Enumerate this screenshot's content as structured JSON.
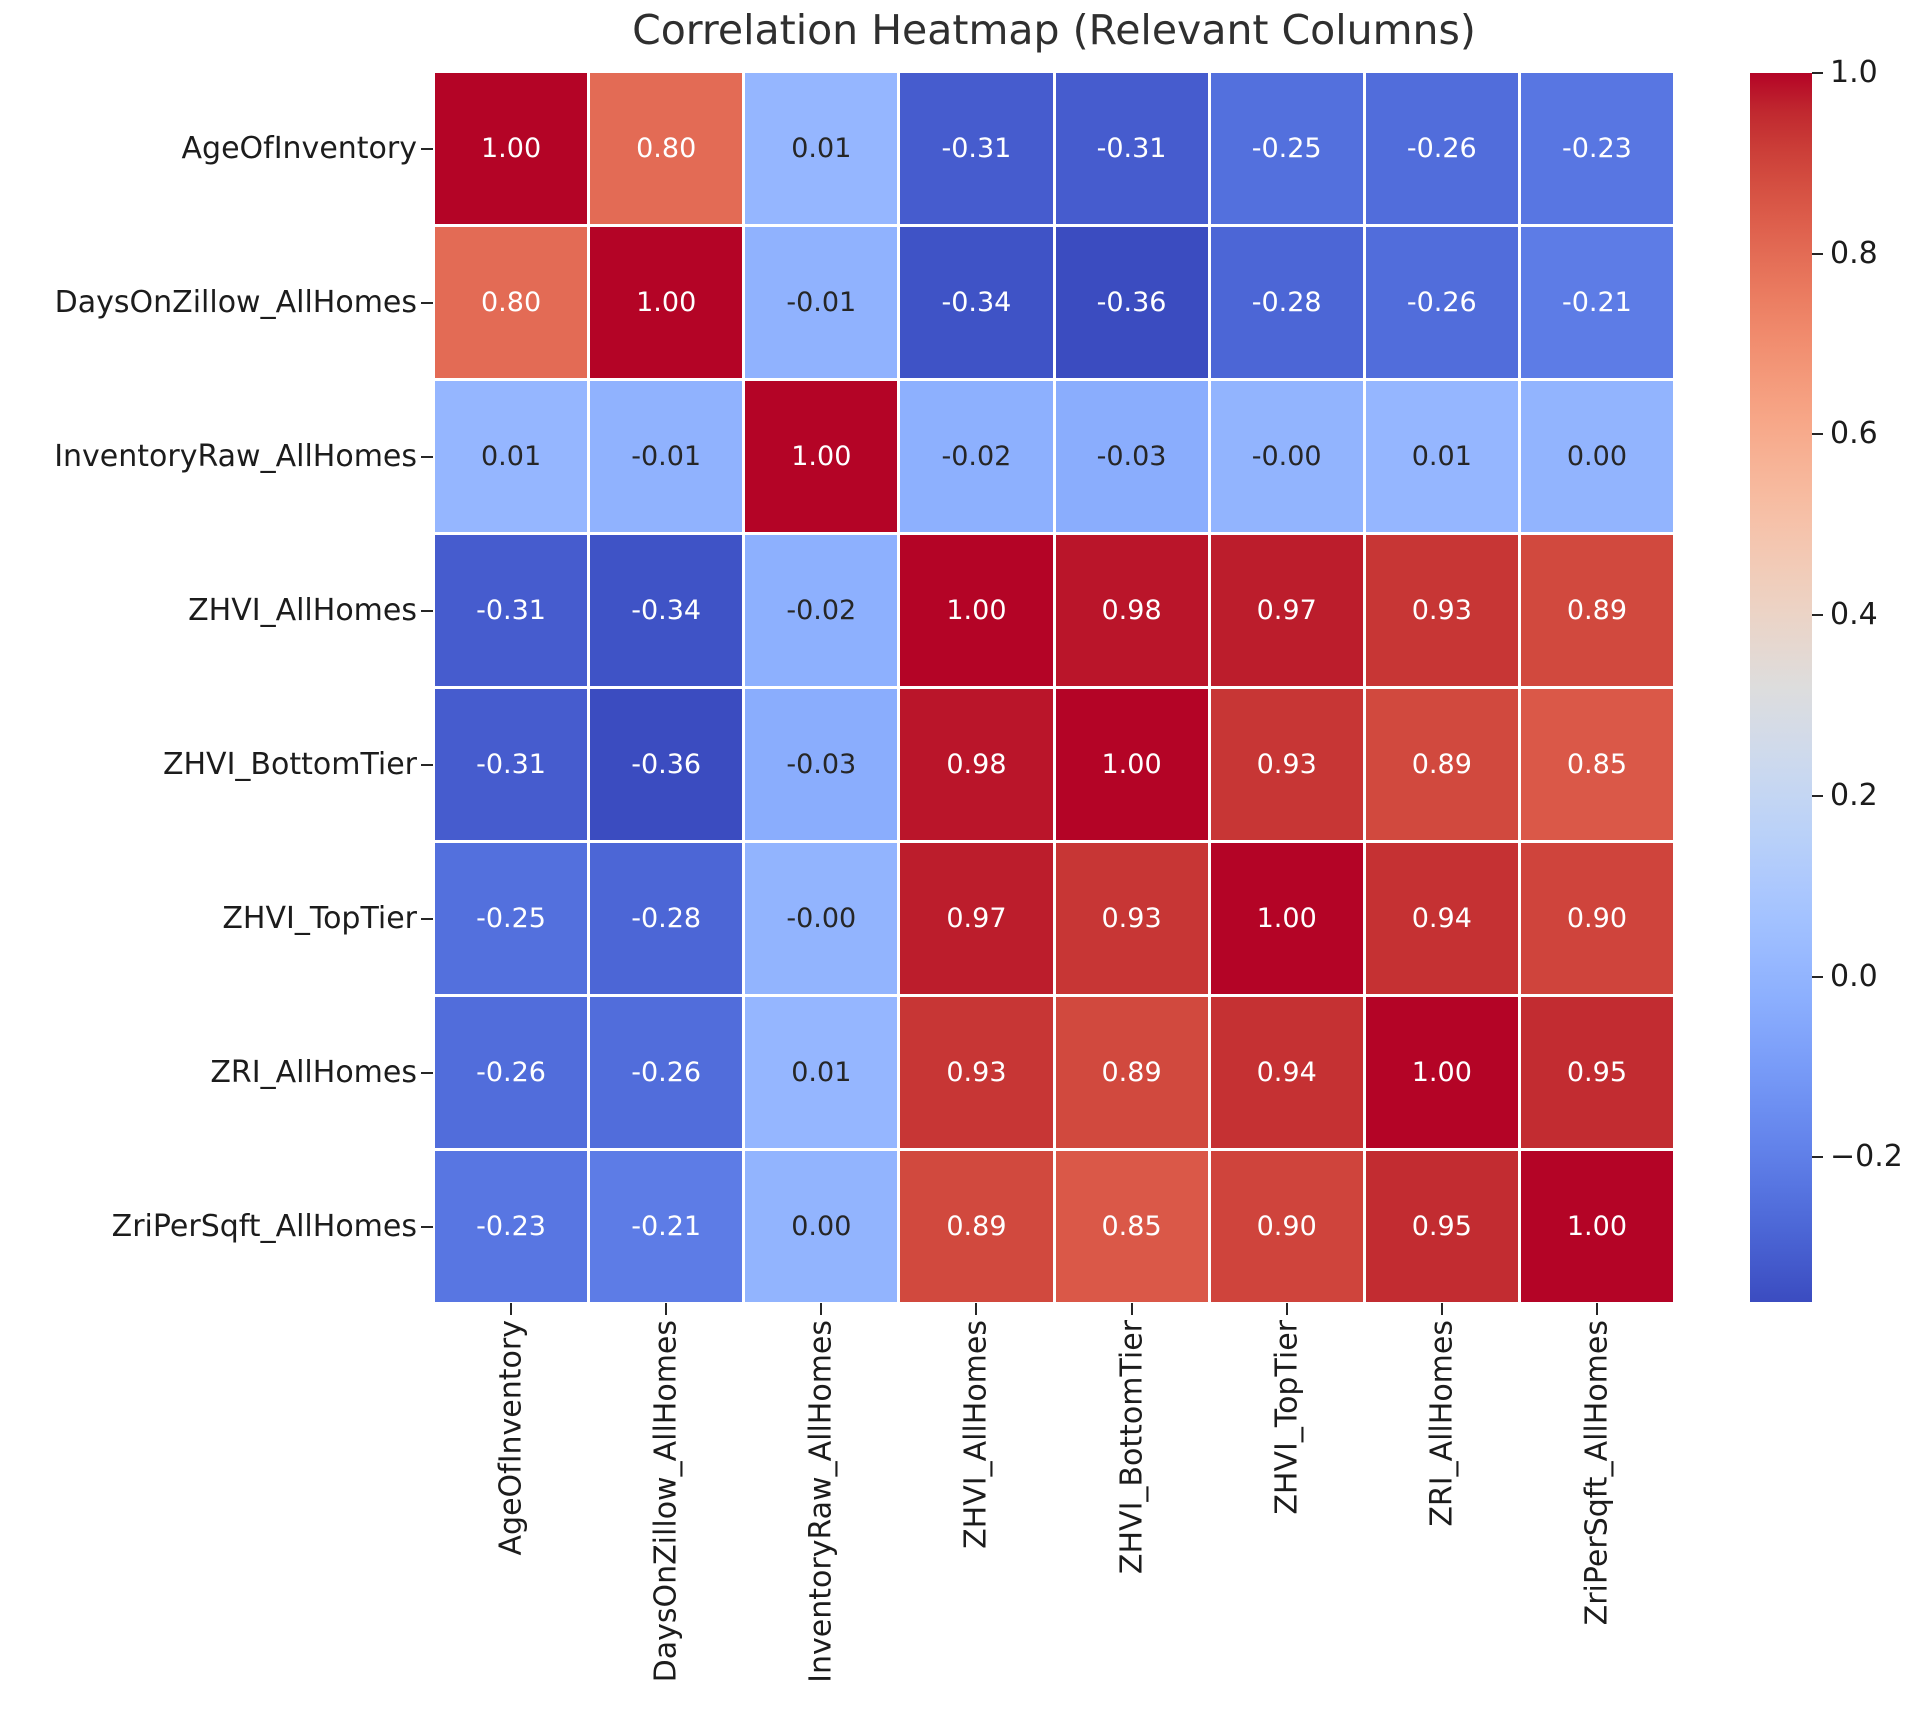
{
  "title": "Correlation Heatmap (Relevant Columns)",
  "chart_data": {
    "type": "heatmap",
    "title": "Correlation Heatmap (Relevant Columns)",
    "categories": [
      "AgeOfInventory",
      "DaysOnZillow_AllHomes",
      "InventoryRaw_AllHomes",
      "ZHVI_AllHomes",
      "ZHVI_BottomTier",
      "ZHVI_TopTier",
      "ZRI_AllHomes",
      "ZriPerSqft_AllHomes"
    ],
    "values": [
      [
        "1.00",
        "0.80",
        "0.01",
        "-0.31",
        "-0.31",
        "-0.25",
        "-0.26",
        "-0.23"
      ],
      [
        "0.80",
        "1.00",
        "-0.01",
        "-0.34",
        "-0.36",
        "-0.28",
        "-0.26",
        "-0.21"
      ],
      [
        "0.01",
        "-0.01",
        "1.00",
        "-0.02",
        "-0.03",
        "-0.00",
        "0.01",
        "0.00"
      ],
      [
        "-0.31",
        "-0.34",
        "-0.02",
        "1.00",
        "0.98",
        "0.97",
        "0.93",
        "0.89"
      ],
      [
        "-0.31",
        "-0.36",
        "-0.03",
        "0.98",
        "1.00",
        "0.93",
        "0.89",
        "0.85"
      ],
      [
        "-0.25",
        "-0.28",
        "-0.00",
        "0.97",
        "0.93",
        "1.00",
        "0.94",
        "0.90"
      ],
      [
        "-0.26",
        "-0.26",
        "0.01",
        "0.93",
        "0.89",
        "0.94",
        "1.00",
        "0.95"
      ],
      [
        "-0.23",
        "-0.21",
        "0.00",
        "0.89",
        "0.85",
        "0.90",
        "0.95",
        "1.00"
      ]
    ],
    "colormap": "coolwarm",
    "vmin": -0.36,
    "vmax": 1.0,
    "colorbar": {
      "position": "right",
      "tick_labels": [
        "1.0",
        "0.8",
        "0.6",
        "0.4",
        "0.2",
        "0.0",
        "−0.2"
      ],
      "tick_values": [
        1.0,
        0.8,
        0.6,
        0.4,
        0.2,
        0.0,
        -0.2
      ]
    },
    "annotations": true,
    "grid_lines": "white",
    "x_tick_rotation": 90
  },
  "colors": {
    "background": "#ffffff",
    "cell_divider": "#ffffff",
    "annotation_light": "#ffffff",
    "annotation_dark": "#262626",
    "tick_color": "#262626",
    "title_text": "#2f2f2f",
    "label_text": "#1c1c1c",
    "colormap_min": "#3b4cc0",
    "colormap_mid": "#dddddd",
    "colormap_max": "#b40426"
  }
}
